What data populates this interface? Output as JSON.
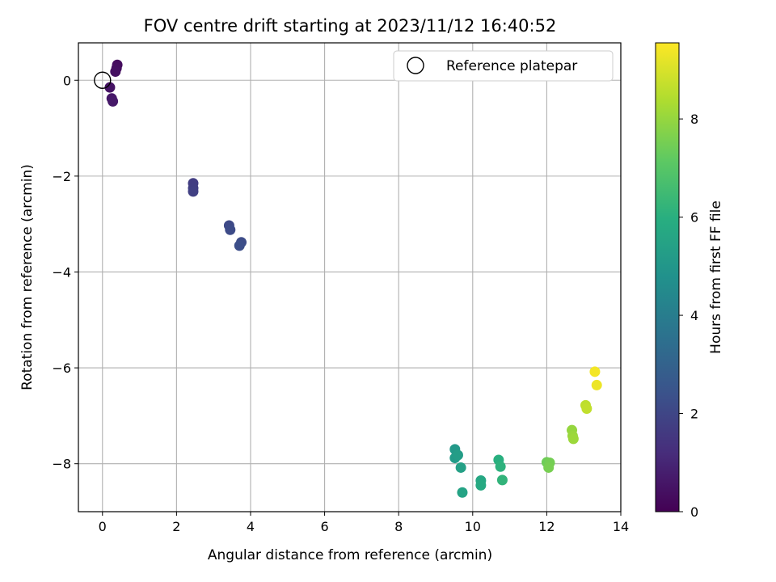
{
  "chart_data": {
    "type": "scatter",
    "title": "FOV centre drift starting at 2023/11/12 16:40:52",
    "xlabel": "Angular distance from reference (arcmin)",
    "ylabel": "Rotation from reference (arcmin)",
    "xlim": [
      -0.65,
      14.0
    ],
    "ylim": [
      -9.0,
      0.78
    ],
    "xticks": [
      0,
      2,
      4,
      6,
      8,
      10,
      12,
      14
    ],
    "yticks": [
      0,
      -2,
      -4,
      -6,
      -8
    ],
    "xtick_labels": [
      "0",
      "2",
      "4",
      "6",
      "8",
      "10",
      "12",
      "14"
    ],
    "ytick_labels": [
      "0",
      "−2",
      "−4",
      "−6",
      "−8"
    ],
    "grid": true,
    "legend": {
      "position": "top-right",
      "entries": [
        "Reference platepar"
      ]
    },
    "reference_point": {
      "x": 0,
      "y": 0
    },
    "colorbar": {
      "label": "Hours from first FF file",
      "colormap": "viridis",
      "range": [
        0,
        9.55
      ],
      "ticks": [
        0,
        2,
        4,
        6,
        8
      ],
      "tick_labels": [
        "0",
        "2",
        "4",
        "6",
        "8"
      ]
    },
    "points": [
      {
        "x": 0.4,
        "y": 0.32,
        "c": 0.3
      },
      {
        "x": 0.38,
        "y": 0.25,
        "c": 0.35
      },
      {
        "x": 0.35,
        "y": 0.18,
        "c": 0.4
      },
      {
        "x": 0.2,
        "y": -0.15,
        "c": 0.5
      },
      {
        "x": 0.25,
        "y": -0.38,
        "c": 0.6
      },
      {
        "x": 0.28,
        "y": -0.44,
        "c": 0.65
      },
      {
        "x": 2.45,
        "y": -2.15,
        "c": 1.7
      },
      {
        "x": 2.45,
        "y": -2.25,
        "c": 1.75
      },
      {
        "x": 2.45,
        "y": -2.32,
        "c": 1.8
      },
      {
        "x": 3.42,
        "y": -3.03,
        "c": 2.1
      },
      {
        "x": 3.45,
        "y": -3.12,
        "c": 2.15
      },
      {
        "x": 3.75,
        "y": -3.38,
        "c": 2.2
      },
      {
        "x": 3.7,
        "y": -3.45,
        "c": 2.25
      },
      {
        "x": 9.52,
        "y": -7.7,
        "c": 5.1
      },
      {
        "x": 9.52,
        "y": -7.88,
        "c": 5.2
      },
      {
        "x": 9.6,
        "y": -7.82,
        "c": 5.25
      },
      {
        "x": 9.68,
        "y": -8.08,
        "c": 5.4
      },
      {
        "x": 9.72,
        "y": -8.6,
        "c": 5.5
      },
      {
        "x": 10.22,
        "y": -8.35,
        "c": 5.7
      },
      {
        "x": 10.22,
        "y": -8.45,
        "c": 5.75
      },
      {
        "x": 10.7,
        "y": -7.92,
        "c": 6.0
      },
      {
        "x": 10.75,
        "y": -8.06,
        "c": 6.1
      },
      {
        "x": 10.8,
        "y": -8.34,
        "c": 6.2
      },
      {
        "x": 12.0,
        "y": -7.97,
        "c": 7.4
      },
      {
        "x": 12.08,
        "y": -7.98,
        "c": 7.5
      },
      {
        "x": 12.05,
        "y": -8.08,
        "c": 7.55
      },
      {
        "x": 12.68,
        "y": -7.3,
        "c": 8.0
      },
      {
        "x": 12.7,
        "y": -7.42,
        "c": 8.05
      },
      {
        "x": 12.72,
        "y": -7.48,
        "c": 8.1
      },
      {
        "x": 13.05,
        "y": -6.78,
        "c": 8.6
      },
      {
        "x": 13.08,
        "y": -6.85,
        "c": 8.65
      },
      {
        "x": 13.3,
        "y": -6.08,
        "c": 9.4
      },
      {
        "x": 13.35,
        "y": -6.36,
        "c": 9.3
      }
    ]
  }
}
